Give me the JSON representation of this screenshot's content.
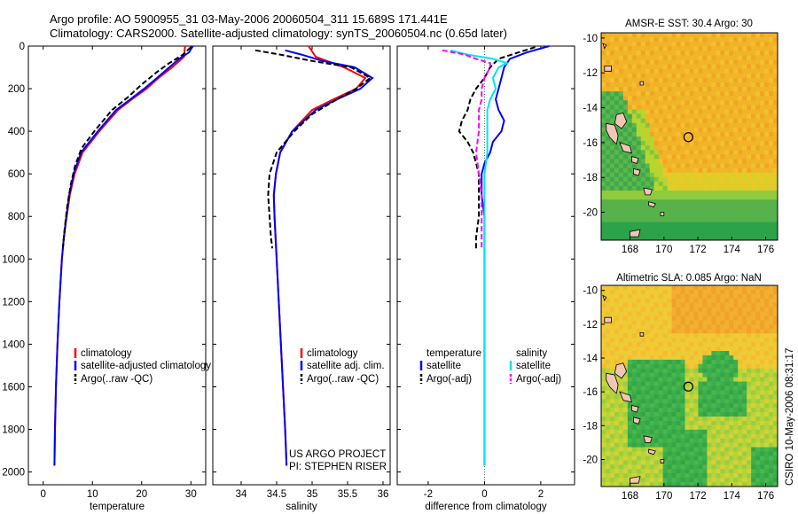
{
  "header": {
    "title_line1": "Argo profile: AO 5900955_31 03-May-2006 20060504_311 15.689S 171.441E",
    "title_line2": "Climatology: CARS2000. Satellite-adjusted climatology: synTS_20060504.nc (0.65d later)"
  },
  "side_label": "CSIRO 10-May-2006 08:31:17",
  "colors": {
    "climatology": "#ff0000",
    "satellite": "#0000ff",
    "argo": "#000000",
    "sat_salinity": "#00e5ee",
    "argo_adj_salinity": "#ff00ff"
  },
  "chart_data": [
    {
      "type": "line",
      "id": "temperature",
      "xlabel": "temperature",
      "ylabel": "",
      "xlim": [
        -3,
        33
      ],
      "ylim": [
        2060,
        0
      ],
      "xticks": [
        0,
        10,
        20,
        30
      ],
      "xtick_labels": [
        "0",
        "10",
        "20",
        "30"
      ],
      "yticks": [
        0,
        200,
        400,
        600,
        800,
        1000,
        1200,
        1400,
        1600,
        1800,
        2000
      ],
      "ytick_labels": [
        "0",
        "200",
        "400",
        "600",
        "800",
        "1000",
        "1200",
        "1400",
        "1600",
        "1800",
        "2000"
      ],
      "legend": [
        {
          "label": "climatology",
          "series": "climatology"
        },
        {
          "label": "satellite-adjusted climatology",
          "series": "satellite"
        },
        {
          "label": "Argo(..raw -QC)",
          "series": "argo"
        }
      ],
      "series": [
        {
          "name": "climatology",
          "color": "#ff0000",
          "dash": "",
          "depth": [
            0,
            50,
            100,
            150,
            200,
            250,
            300,
            400,
            500,
            600,
            700,
            800,
            900,
            1000,
            1200,
            1400,
            1600,
            1800,
            1970
          ],
          "values": [
            28.8,
            28.6,
            26.2,
            23.4,
            21.0,
            18.0,
            15.2,
            11.4,
            8.0,
            6.4,
            5.4,
            4.8,
            4.2,
            3.8,
            3.3,
            2.9,
            2.6,
            2.4,
            2.3
          ]
        },
        {
          "name": "satellite",
          "color": "#0000ff",
          "dash": "",
          "depth": [
            0,
            30,
            60,
            100,
            150,
            200,
            250,
            300,
            400,
            500,
            600,
            700,
            800,
            900,
            1000,
            1200,
            1400,
            1600,
            1800,
            1970
          ],
          "values": [
            30.4,
            29.6,
            27.6,
            25.6,
            23.1,
            20.5,
            17.7,
            14.8,
            11.1,
            7.7,
            6.2,
            5.3,
            4.7,
            4.2,
            3.8,
            3.3,
            2.9,
            2.6,
            2.4,
            2.3
          ]
        },
        {
          "name": "argo",
          "color": "#000000",
          "dash": "6,3",
          "depth": [
            5,
            40,
            80,
            120,
            180,
            240,
            300,
            400,
            480,
            560,
            650,
            750,
            850,
            950
          ],
          "values": [
            30.0,
            28.4,
            25.6,
            23.2,
            20.0,
            17.2,
            14.0,
            10.4,
            7.8,
            6.5,
            5.6,
            4.9,
            4.4,
            4.0
          ]
        }
      ]
    },
    {
      "type": "line",
      "id": "salinity",
      "xlabel": "salinity",
      "ylabel": "",
      "xlim": [
        33.6,
        36.1
      ],
      "ylim": [
        2060,
        0
      ],
      "xticks": [
        34,
        34.5,
        35,
        35.5,
        36
      ],
      "xtick_labels": [
        "34",
        "34.5",
        "35",
        "35.5",
        "36"
      ],
      "legend": [
        {
          "label": "climatology",
          "series": "climatology"
        },
        {
          "label": "satellite adj. clim.",
          "series": "satellite"
        },
        {
          "label": "Argo(..raw -QC)",
          "series": "argo"
        }
      ],
      "annotation": [
        "US ARGO PROJECT",
        "PI: STEPHEN RISER"
      ],
      "series": [
        {
          "name": "climatology",
          "color": "#ff0000",
          "dash": "",
          "depth": [
            0,
            50,
            100,
            150,
            200,
            250,
            300,
            400,
            500,
            600,
            700,
            800,
            1000,
            1200,
            1400,
            1600,
            1800,
            1970
          ],
          "values": [
            34.95,
            35.05,
            35.45,
            35.75,
            35.62,
            35.3,
            35.0,
            34.72,
            34.55,
            34.49,
            34.46,
            34.47,
            34.5,
            34.53,
            34.56,
            34.59,
            34.62,
            34.64
          ]
        },
        {
          "name": "satellite",
          "color": "#0000ff",
          "dash": "",
          "depth": [
            20,
            40,
            70,
            100,
            150,
            200,
            250,
            300,
            400,
            500,
            600,
            700,
            800,
            1000,
            1200,
            1400,
            1600,
            1800,
            1970
          ],
          "values": [
            34.62,
            34.85,
            35.15,
            35.6,
            35.85,
            35.68,
            35.35,
            35.05,
            34.72,
            34.55,
            34.49,
            34.46,
            34.47,
            34.5,
            34.53,
            34.56,
            34.59,
            34.62,
            34.64
          ]
        },
        {
          "name": "argo",
          "color": "#000000",
          "dash": "6,3",
          "depth": [
            20,
            40,
            70,
            100,
            150,
            200,
            260,
            320,
            400,
            500,
            600,
            700,
            800,
            900,
            950
          ],
          "values": [
            34.2,
            34.55,
            35.0,
            35.55,
            35.82,
            35.62,
            35.3,
            35.0,
            34.75,
            34.5,
            34.4,
            34.38,
            34.4,
            34.42,
            34.44
          ]
        }
      ]
    },
    {
      "type": "line",
      "id": "difference",
      "xlabel": "difference from climatology",
      "ylabel": "",
      "xlim": [
        -3.1,
        3.2
      ],
      "ylim": [
        2060,
        0
      ],
      "xticks": [
        -2,
        0,
        2
      ],
      "xtick_labels": [
        "-2",
        "0",
        "2"
      ],
      "legend": [
        {
          "label": "temperature",
          "series": ""
        },
        {
          "label": "satellite",
          "series": "satellite"
        },
        {
          "label": "Argo(-adj)",
          "series": "argo"
        },
        {
          "label": "salinity",
          "series": ""
        },
        {
          "label": "satellite",
          "series": "sat_salinity"
        },
        {
          "label": "Argo(-adj)",
          "series": "argo_adj_salinity"
        }
      ],
      "series": [
        {
          "name": "temp-satellite",
          "color": "#0000ff",
          "dash": "",
          "depth": [
            0,
            30,
            60,
            100,
            150,
            200,
            250,
            300,
            350,
            400,
            450,
            500,
            550,
            600,
            700,
            800,
            900,
            1000,
            1200,
            1400,
            1600,
            1800,
            1970
          ],
          "values": [
            2.3,
            1.5,
            0.9,
            0.7,
            0.6,
            0.5,
            0.4,
            0.5,
            0.7,
            0.6,
            0.3,
            0.2,
            0.0,
            -0.1,
            -0.1,
            0.0,
            0.0,
            0.0,
            0.0,
            0.0,
            0.0,
            0.0,
            0.0
          ]
        },
        {
          "name": "temp-argo",
          "color": "#000000",
          "dash": "6,3",
          "depth": [
            5,
            30,
            60,
            100,
            150,
            200,
            250,
            300,
            350,
            400,
            450,
            500,
            600,
            700,
            800,
            900,
            950
          ],
          "values": [
            1.8,
            1.2,
            0.5,
            0.2,
            0.0,
            -0.3,
            -0.5,
            -0.6,
            -0.8,
            -0.9,
            -0.6,
            -0.4,
            -0.2,
            -0.2,
            -0.2,
            -0.3,
            -0.3
          ]
        },
        {
          "name": "sal-satellite",
          "color": "#00e5ee",
          "dash": "",
          "depth": [
            20,
            40,
            60,
            80,
            100,
            150,
            200,
            250,
            300,
            400,
            500,
            600,
            800,
            1000,
            1200,
            1400,
            1600,
            1800,
            1970
          ],
          "values": [
            -1.2,
            -0.6,
            0.3,
            0.8,
            0.5,
            0.3,
            0.4,
            0.2,
            0.1,
            0.1,
            0.1,
            0.0,
            0.0,
            0.0,
            0.0,
            0.0,
            0.0,
            0.0,
            0.0
          ]
        },
        {
          "name": "sal-argo",
          "color": "#ff00ff",
          "dash": "6,3",
          "depth": [
            20,
            40,
            60,
            80,
            100,
            150,
            200,
            250,
            300,
            400,
            500,
            600,
            700,
            800,
            900,
            950
          ],
          "values": [
            -1.5,
            -0.7,
            -0.3,
            0.2,
            0.2,
            0.0,
            -0.1,
            -0.1,
            -0.2,
            -0.2,
            -0.3,
            -0.2,
            -0.1,
            -0.1,
            -0.1,
            -0.1
          ]
        }
      ]
    },
    {
      "type": "heatmap",
      "id": "sst-map",
      "title": "AMSR-E SST: 30.4 Argo: 30",
      "xlim": [
        166.3,
        176.7
      ],
      "ylim": [
        -21.6,
        -9.7
      ],
      "xticks": [
        168,
        170,
        172,
        174,
        176
      ],
      "xtick_labels": [
        "168",
        "170",
        "172",
        "174",
        "176"
      ],
      "yticks": [
        -10,
        -12,
        -14,
        -16,
        -18,
        -20
      ],
      "ytick_labels": [
        "-10",
        "-12",
        "-14",
        "-16",
        "-18",
        "-20"
      ],
      "marker": {
        "lon": 171.44,
        "lat": -15.69
      }
    },
    {
      "type": "heatmap",
      "id": "sla-map",
      "title": "Altimetric SLA: 0.085 Argo: NaN",
      "xlim": [
        166.3,
        176.7
      ],
      "ylim": [
        -21.6,
        -9.7
      ],
      "xticks": [
        168,
        170,
        172,
        174,
        176
      ],
      "xtick_labels": [
        "168",
        "170",
        "172",
        "174",
        "176"
      ],
      "yticks": [
        -10,
        -12,
        -14,
        -16,
        -18,
        -20
      ],
      "ytick_labels": [
        "-10",
        "-12",
        "-14",
        "-16",
        "-18",
        "-20"
      ],
      "marker": {
        "lon": 171.44,
        "lat": -15.69
      }
    }
  ]
}
